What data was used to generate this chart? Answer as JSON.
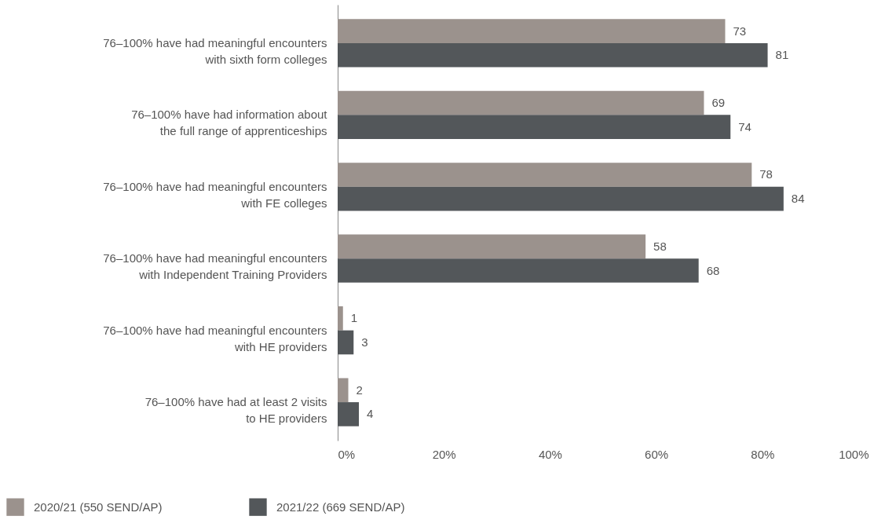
{
  "chart_data": {
    "type": "bar",
    "orientation": "horizontal",
    "categories": [
      "76–100% have had meaningful encounters\nwith sixth form colleges",
      "76–100% have had information about\nthe full range of apprenticeships",
      "76–100% have had meaningful encounters\nwith FE colleges",
      "76–100% have had meaningful encounters\nwith Independent Training Providers",
      "76–100% have had meaningful encounters\nwith HE providers",
      "76–100% have had at least 2 visits\nto HE providers"
    ],
    "series": [
      {
        "name": "2020/21 (550 SEND/AP)",
        "color": "#9b928d",
        "values": [
          73,
          69,
          78,
          58,
          1,
          2
        ]
      },
      {
        "name": "2021/22 (669 SEND/AP)",
        "color": "#53575a",
        "values": [
          81,
          74,
          84,
          68,
          3,
          4
        ]
      }
    ],
    "xlim": [
      0,
      100
    ],
    "xticks": [
      {
        "value": 0,
        "label": "0%"
      },
      {
        "value": 20,
        "label": "20%"
      },
      {
        "value": 40,
        "label": "40%"
      },
      {
        "value": 60,
        "label": "60%"
      },
      {
        "value": 80,
        "label": "80%"
      },
      {
        "value": 100,
        "label": "100%"
      }
    ],
    "data_labels": true,
    "legend": "bottom left",
    "grid": false
  }
}
